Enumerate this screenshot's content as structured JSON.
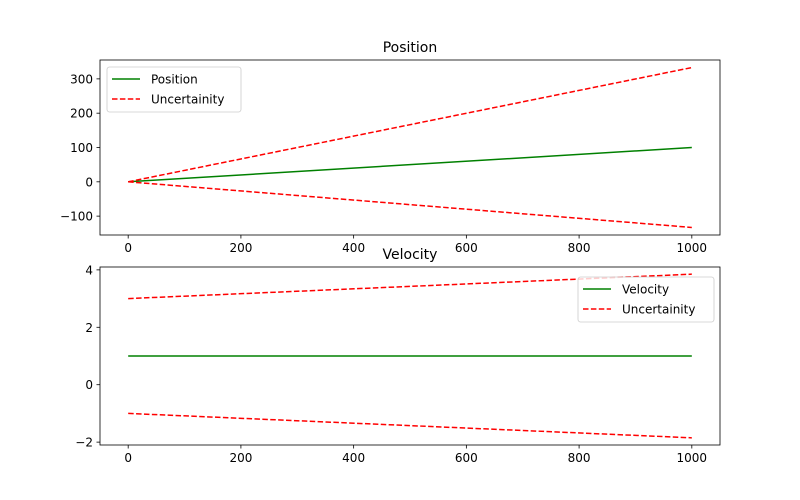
{
  "chart_data": [
    {
      "type": "line",
      "title": "Position",
      "xlabel": "",
      "ylabel": "",
      "xlim": [
        -50,
        1050
      ],
      "ylim": [
        -155,
        355
      ],
      "x_ticks": [
        0,
        200,
        400,
        600,
        800,
        1000
      ],
      "y_ticks": [
        -100,
        0,
        100,
        200,
        300
      ],
      "legend_position": "top-left",
      "series": [
        {
          "name": "Position",
          "color": "#008000",
          "style": "solid",
          "x": [
            0,
            1000
          ],
          "y": [
            0,
            100
          ]
        },
        {
          "name": "Uncertainity",
          "color": "#ff0000",
          "style": "dashed",
          "x": [
            0,
            1000
          ],
          "y": [
            0,
            333
          ]
        },
        {
          "name": "",
          "color": "#ff0000",
          "style": "dashed",
          "x": [
            0,
            1000
          ],
          "y": [
            0,
            -133
          ]
        }
      ]
    },
    {
      "type": "line",
      "title": "Velocity",
      "xlabel": "",
      "ylabel": "",
      "xlim": [
        -50,
        1050
      ],
      "ylim": [
        -2.1,
        4.1
      ],
      "x_ticks": [
        0,
        200,
        400,
        600,
        800,
        1000
      ],
      "y_ticks": [
        -2,
        0,
        2,
        4
      ],
      "legend_position": "top-right",
      "series": [
        {
          "name": "Velocity",
          "color": "#008000",
          "style": "solid",
          "x": [
            0,
            1000
          ],
          "y": [
            1,
            1
          ]
        },
        {
          "name": "Uncertainity",
          "color": "#ff0000",
          "style": "dashed",
          "x": [
            0,
            1000
          ],
          "y": [
            3,
            3.85
          ]
        },
        {
          "name": "",
          "color": "#ff0000",
          "style": "dashed",
          "x": [
            0,
            1000
          ],
          "y": [
            -1,
            -1.85
          ]
        }
      ]
    }
  ]
}
